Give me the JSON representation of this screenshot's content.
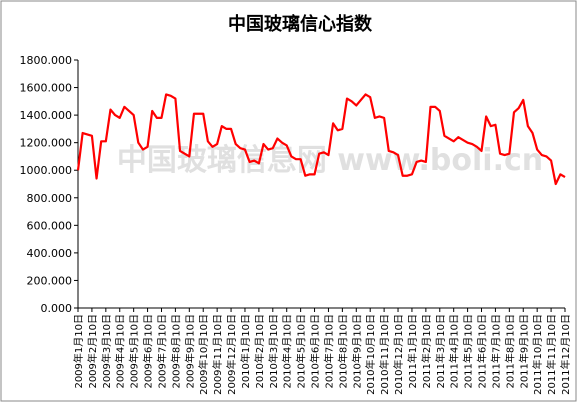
{
  "chart_data": {
    "type": "line",
    "title": "中国玻璃信心指数",
    "watermark": "中国玻璃信息网 www.boli.cn",
    "categories": [
      "2009年1月10日",
      null,
      null,
      "2009年2月10日",
      null,
      null,
      "2009年3月10日",
      null,
      null,
      "2009年4月10日",
      null,
      null,
      "2009年5月10日",
      null,
      null,
      "2009年6月10日",
      null,
      null,
      "2009年7月10日",
      null,
      null,
      "2009年8月10日",
      null,
      null,
      "2009年9月10日",
      null,
      null,
      "2009年10月10日",
      null,
      null,
      "2009年11月10日",
      null,
      null,
      "2009年12月10日",
      null,
      null,
      "2010年1月10日",
      null,
      null,
      "2010年2月10日",
      null,
      null,
      "2010年3月10日",
      null,
      null,
      "2010年4月10日",
      null,
      null,
      "2010年5月10日",
      null,
      null,
      "2010年6月10日",
      null,
      null,
      "2010年7月10日",
      null,
      null,
      "2010年8月10日",
      null,
      null,
      "2010年9月10日",
      null,
      null,
      "2010年10月10日",
      null,
      null,
      "2010年11月10日",
      null,
      null,
      "2010年12月10日",
      null,
      null,
      "2011年1月10日",
      null,
      null,
      "2011年2月10日",
      null,
      null,
      "2011年3月10日",
      null,
      null,
      "2011年4月10日",
      null,
      null,
      "2011年5月10日",
      null,
      null,
      "2011年6月10日",
      null,
      null,
      "2011年7月10日",
      null,
      null,
      "2011年8月10日",
      null,
      null,
      "2011年9月10日",
      null,
      null,
      "2011年10月10日",
      null,
      null,
      "2011年11月10日",
      null,
      null,
      "2011年12月10日"
    ],
    "values": [
      1000,
      1270,
      1260,
      1250,
      940,
      1210,
      1210,
      1440,
      1400,
      1380,
      1460,
      1430,
      1400,
      1200,
      1150,
      1170,
      1430,
      1380,
      1380,
      1550,
      1540,
      1520,
      1140,
      1120,
      1100,
      1410,
      1410,
      1410,
      1210,
      1170,
      1190,
      1320,
      1300,
      1300,
      1190,
      1160,
      1150,
      1060,
      1070,
      1050,
      1190,
      1150,
      1160,
      1230,
      1200,
      1180,
      1100,
      1080,
      1080,
      960,
      970,
      970,
      1120,
      1130,
      1110,
      1340,
      1290,
      1300,
      1520,
      1500,
      1470,
      1510,
      1550,
      1530,
      1380,
      1390,
      1380,
      1140,
      1130,
      1110,
      960,
      960,
      970,
      1060,
      1070,
      1060,
      1460,
      1460,
      1430,
      1250,
      1230,
      1210,
      1240,
      1220,
      1200,
      1190,
      1170,
      1140,
      1390,
      1320,
      1330,
      1120,
      1110,
      1120,
      1420,
      1450,
      1510,
      1320,
      1270,
      1150,
      1110,
      1100,
      1070,
      900,
      970,
      950
    ],
    "color": "#ff0000",
    "ylim": [
      0,
      1800
    ],
    "yticks": [
      {
        "value": 0,
        "label": "0.000"
      },
      {
        "value": 200,
        "label": "200.000"
      },
      {
        "value": 400,
        "label": "400.000"
      },
      {
        "value": 600,
        "label": "600.000"
      },
      {
        "value": 800,
        "label": "800.000"
      },
      {
        "value": 1000,
        "label": "1000.000"
      },
      {
        "value": 1200,
        "label": "1200.000"
      },
      {
        "value": 1400,
        "label": "1400.000"
      },
      {
        "value": 1600,
        "label": "1600.000"
      },
      {
        "value": 1800,
        "label": "1800.000"
      }
    ],
    "grid": false
  }
}
